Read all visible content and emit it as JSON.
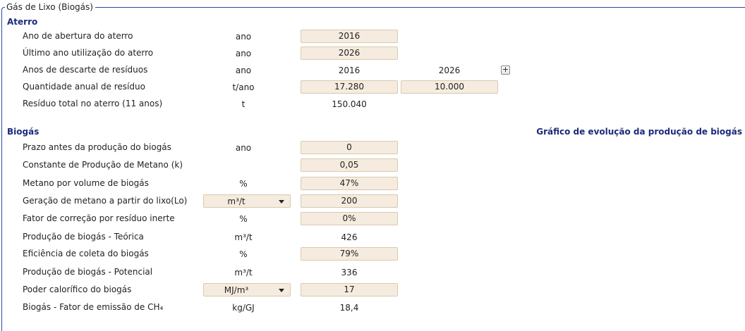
{
  "group_title": "Gás de Lixo (Biogás)",
  "aterro": {
    "heading": "Aterro",
    "rows": [
      {
        "label": "Ano de abertura do aterro",
        "unit": "ano",
        "value": "2016"
      },
      {
        "label": "Último ano utilização do aterro",
        "unit": "ano",
        "value": "2026"
      },
      {
        "label": "Anos de descarte de resíduos",
        "unit": "ano",
        "value": "2016",
        "value2": "2026"
      },
      {
        "label": "Quantidade anual de resíduo",
        "unit": "t/ano",
        "value": "17.280",
        "value2": "10.000"
      },
      {
        "label": "Resíduo total no aterro (11 anos)",
        "unit": "t",
        "value": "150.040"
      }
    ],
    "add_button": "+"
  },
  "biogas": {
    "heading": "Biogás",
    "graph_title": "Gráfico de evolução da produção de biogás",
    "rows": [
      {
        "label": "Prazo antes da produção do biogás",
        "unit": "ano",
        "value": "0"
      },
      {
        "label": "Constante de Produção de Metano (k)",
        "unit": "",
        "value": "0,05"
      },
      {
        "label": "Metano por volume de biogás",
        "unit": "%",
        "value": "47%"
      },
      {
        "label": "Geração de metano a partir do lixo(Lo)",
        "unit": "m³/t",
        "value": "200"
      },
      {
        "label": "Fator de correção por resíduo inerte",
        "unit": "%",
        "value": "0%"
      },
      {
        "label": "Produção de biogás - Teórica",
        "unit": "m³/t",
        "value": "426"
      },
      {
        "label": "Eficiência de coleta do biogás",
        "unit": "%",
        "value": "79%"
      },
      {
        "label": "Produção de biogás - Potencial",
        "unit": "m³/t",
        "value": "336"
      },
      {
        "label": "Poder calorífico do biogás",
        "unit": "MJ/m³",
        "value": "17"
      },
      {
        "label": "Biogás - Fator de emissão de CH₄",
        "unit": "kg/GJ",
        "value": "18,4"
      }
    ]
  },
  "icons": {
    "dropdown": "chevron-down-icon"
  },
  "colors": {
    "heading": "#1d2a7a",
    "input_bg": "#f5ecdf",
    "input_border": "#d8c9ae",
    "frame": "#2b4aa0"
  }
}
